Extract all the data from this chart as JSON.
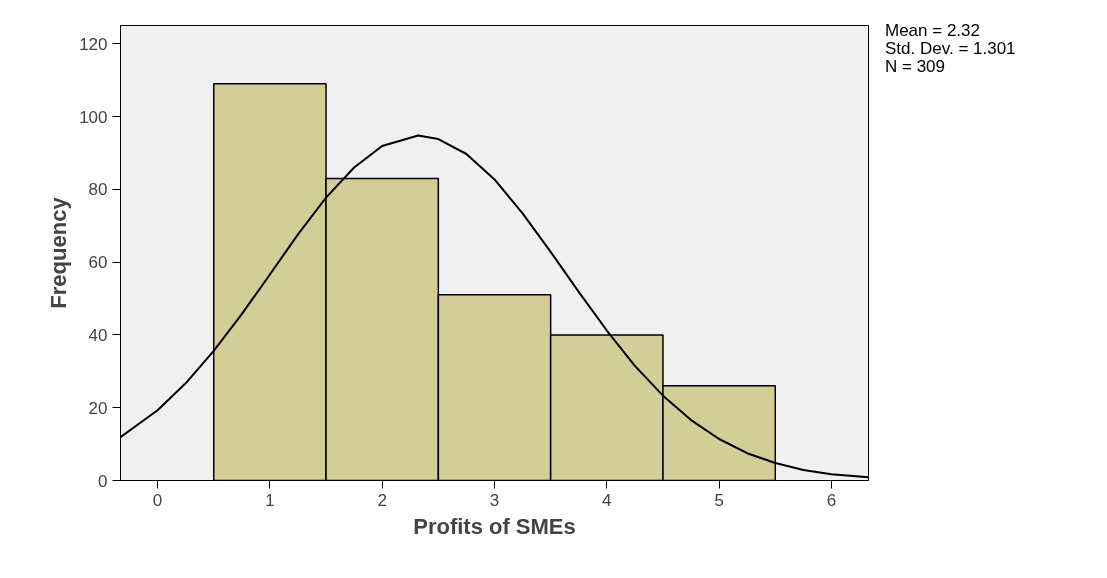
{
  "chart_data": {
    "type": "histogram",
    "xlabel": "Profits of SMEs",
    "ylabel": "Frequency",
    "annotations": [
      "Mean = 2.32",
      "Std. Dev. = 1.301",
      "N = 309"
    ],
    "xlim": [
      -0.33,
      6.33
    ],
    "ylim": [
      0,
      125
    ],
    "xticks": [
      0,
      1,
      2,
      3,
      4,
      5,
      6
    ],
    "yticks": [
      0,
      20,
      40,
      60,
      80,
      100,
      120
    ],
    "grid": false,
    "series": [
      {
        "color": "#d3ce97",
        "bins": [
          0.5,
          1.5,
          2.5,
          3.5,
          4.5,
          5.5
        ],
        "values": [
          109,
          83,
          51,
          40,
          26
        ]
      },
      {
        "type": "line",
        "color": "#000000",
        "x": [
          -0.33,
          0,
          0.25,
          0.5,
          0.75,
          1,
          1.25,
          1.5,
          1.75,
          2,
          2.32,
          2.5,
          2.75,
          3,
          3.25,
          3.5,
          3.75,
          4,
          4.25,
          4.5,
          4.75,
          5,
          5.25,
          5.5,
          5.75,
          6,
          6.33
        ],
        "values": [
          11.9,
          19.3,
          26.7,
          35.6,
          45.7,
          56.6,
          67.6,
          77.7,
          86.0,
          91.9,
          94.8,
          93.8,
          89.7,
          82.7,
          73.4,
          62.8,
          51.8,
          41.2,
          31.5,
          23.3,
          16.6,
          11.4,
          7.5,
          4.8,
          2.9,
          1.7,
          0.9
        ]
      }
    ]
  }
}
